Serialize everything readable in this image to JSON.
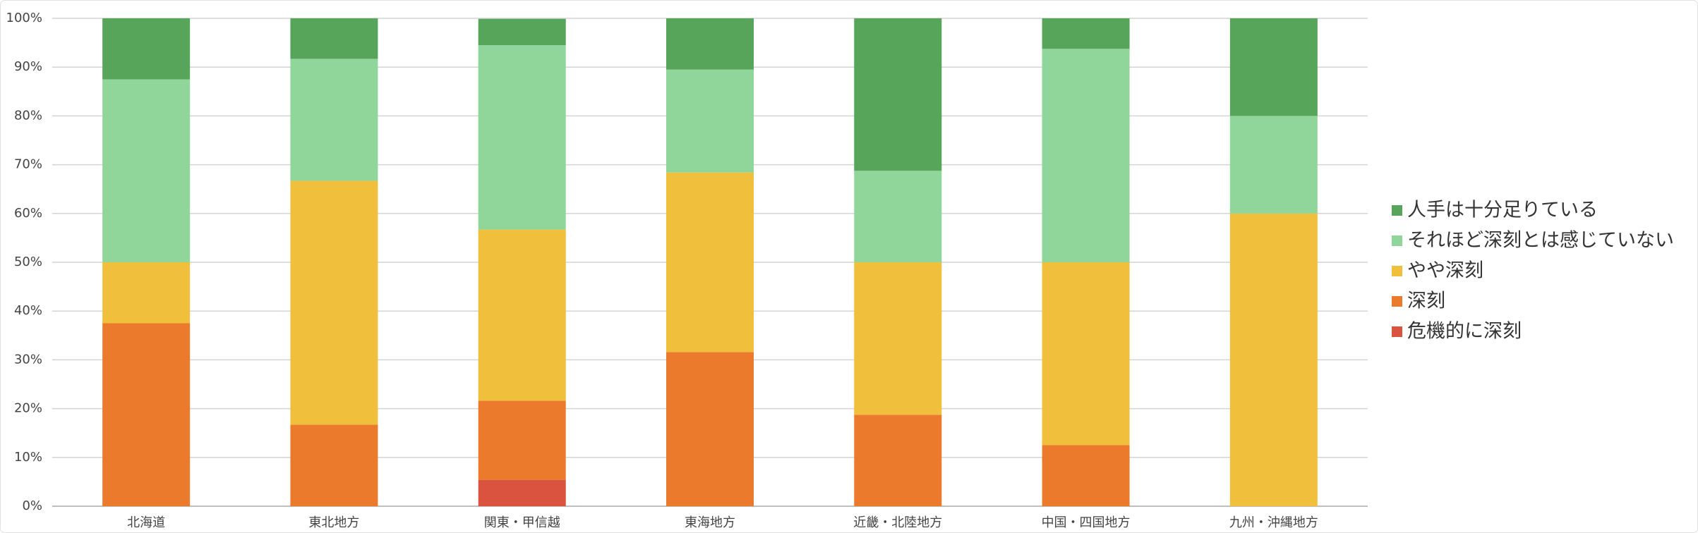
{
  "chart_data": {
    "type": "stacked_bar",
    "categories": [
      "北海道",
      "東北地方",
      "関東・甲信越",
      "東海地方",
      "近畿・北陸地方",
      "中国・四国地方",
      "九州・沖縄地方"
    ],
    "series": [
      {
        "name": "危機的に深刻",
        "color": "#d9533f",
        "values": [
          0,
          0,
          5.4,
          0,
          0,
          0,
          0
        ]
      },
      {
        "name": "深刻",
        "color": "#ec7a2c",
        "values": [
          37.5,
          16.7,
          16.2,
          31.6,
          18.75,
          12.5,
          0
        ]
      },
      {
        "name": "やや深刻",
        "color": "#f0bf3c",
        "values": [
          12.5,
          50,
          35.1,
          36.8,
          31.25,
          37.5,
          60
        ]
      },
      {
        "name": "それほど深刻とは感じていない",
        "color": "#90d69a",
        "values": [
          37.5,
          25,
          37.8,
          21.1,
          18.75,
          43.75,
          20
        ]
      },
      {
        "name": "人手は十分足りている",
        "color": "#57a55a",
        "values": [
          12.5,
          8.3,
          5.4,
          10.5,
          31.25,
          6.25,
          20
        ]
      }
    ],
    "ylim": [
      0,
      100
    ],
    "yticks": [
      {
        "value": 0,
        "label": "0%"
      },
      {
        "value": 10,
        "label": "10%"
      },
      {
        "value": 20,
        "label": "20%"
      },
      {
        "value": 30,
        "label": "30%"
      },
      {
        "value": 40,
        "label": "40%"
      },
      {
        "value": 50,
        "label": "50%"
      },
      {
        "value": 60,
        "label": "60%"
      },
      {
        "value": 70,
        "label": "70%"
      },
      {
        "value": 80,
        "label": "80%"
      },
      {
        "value": 90,
        "label": "90%"
      },
      {
        "value": 100,
        "label": "100%"
      }
    ],
    "grid": true,
    "legend": "right"
  }
}
